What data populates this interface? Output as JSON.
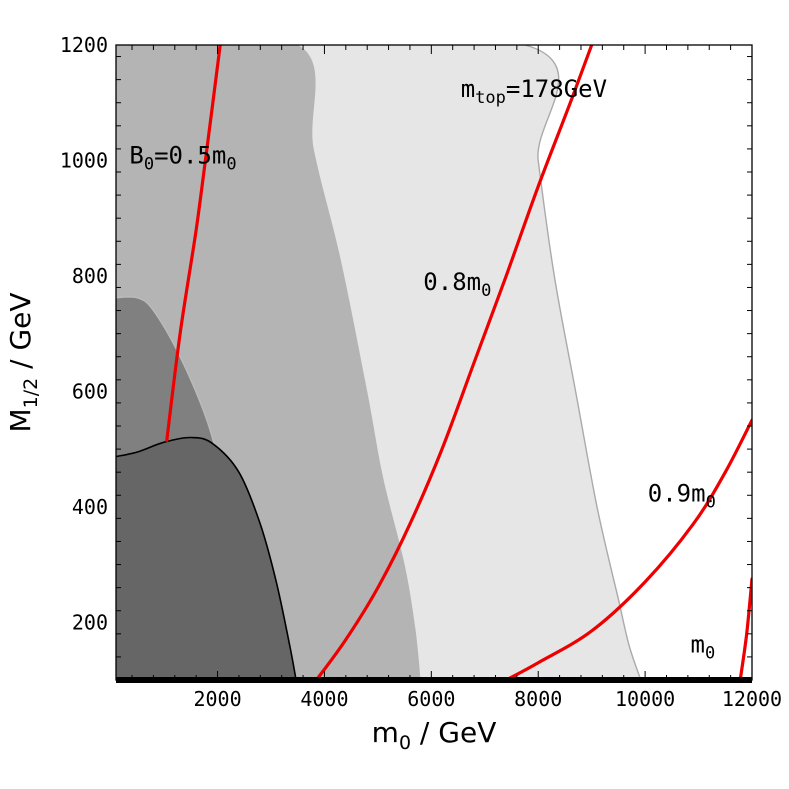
{
  "chart_data": {
    "type": "line",
    "xlabel": {
      "main": "m",
      "sub": "0",
      "unit": " / GeV"
    },
    "ylabel": {
      "main": "M",
      "sub": "1/2",
      "unit": " / GeV"
    },
    "xlim": [
      100,
      12000
    ],
    "ylim": [
      100,
      1200
    ],
    "xticks": [
      2000,
      4000,
      6000,
      8000,
      10000,
      12000
    ],
    "yticks": [
      200,
      400,
      600,
      800,
      1000,
      1200
    ],
    "grid": false,
    "regions": [
      {
        "id": "light",
        "color": "#e6e6e6",
        "edge": "#aaaaaa",
        "points": [
          [
            100,
            100
          ],
          [
            100,
            1200
          ],
          [
            7750,
            1200
          ],
          [
            8000,
            1000
          ],
          [
            8300,
            800
          ],
          [
            8700,
            600
          ],
          [
            9100,
            400
          ],
          [
            9500,
            240
          ],
          [
            9700,
            160
          ],
          [
            9920,
            100
          ]
        ]
      },
      {
        "id": "medium",
        "color": "#b4b4b4",
        "edge": null,
        "points": [
          [
            100,
            100
          ],
          [
            100,
            1200
          ],
          [
            3500,
            1200
          ],
          [
            3800,
            1020
          ],
          [
            4300,
            830
          ],
          [
            4800,
            600
          ],
          [
            5100,
            450
          ],
          [
            5500,
            300
          ],
          [
            5700,
            190
          ],
          [
            5800,
            100
          ]
        ]
      },
      {
        "id": "mid-dark",
        "color": "#808080",
        "edge": "#bbbbbb",
        "points": [
          [
            100,
            100
          ],
          [
            100,
            762
          ],
          [
            500,
            762
          ],
          [
            800,
            740
          ],
          [
            1300,
            660
          ],
          [
            1800,
            550
          ],
          [
            2200,
            420
          ],
          [
            2600,
            300
          ],
          [
            3000,
            180
          ],
          [
            3150,
            100
          ]
        ]
      },
      {
        "id": "dark",
        "color": "#666666",
        "edge": "#000000",
        "points": [
          [
            100,
            100
          ],
          [
            100,
            487
          ],
          [
            500,
            495
          ],
          [
            1000,
            512
          ],
          [
            1500,
            520
          ],
          [
            1900,
            510
          ],
          [
            2400,
            460
          ],
          [
            2800,
            370
          ],
          [
            3100,
            270
          ],
          [
            3350,
            160
          ],
          [
            3470,
            100
          ]
        ]
      }
    ],
    "series": [
      {
        "label": "B₀=0.5m₀",
        "color": "#ee0000",
        "points": [
          [
            1050,
            515
          ],
          [
            1300,
            700
          ],
          [
            1600,
            880
          ],
          [
            1800,
            1020
          ],
          [
            2050,
            1200
          ]
        ]
      },
      {
        "label": "0.8m₀",
        "color": "#ee0000",
        "points": [
          [
            3850,
            100
          ],
          [
            4400,
            170
          ],
          [
            5000,
            260
          ],
          [
            5600,
            370
          ],
          [
            6200,
            500
          ],
          [
            6800,
            650
          ],
          [
            7400,
            800
          ],
          [
            8000,
            955
          ],
          [
            8600,
            1100
          ],
          [
            9000,
            1200
          ]
        ]
      },
      {
        "label": "0.9m₀",
        "color": "#ee0000",
        "points": [
          [
            7400,
            100
          ],
          [
            8000,
            130
          ],
          [
            9000,
            185
          ],
          [
            10000,
            270
          ],
          [
            10900,
            370
          ],
          [
            11500,
            460
          ],
          [
            12000,
            550
          ]
        ]
      },
      {
        "label": "m₀",
        "color": "#ee0000",
        "points": [
          [
            11780,
            100
          ],
          [
            11900,
            180
          ],
          [
            12000,
            275
          ]
        ]
      }
    ],
    "annotations": [
      {
        "id": "mtop",
        "text": "m",
        "sub": "top",
        "suffix": "=178GeV",
        "x": 6550,
        "y": 1110
      },
      {
        "id": "b0",
        "text": "B",
        "sub": "0",
        "suffix": "=0.5m",
        "sub2": "0",
        "x": 350,
        "y": 995
      },
      {
        "id": "c08",
        "text": "0.8m",
        "sub": "0",
        "x": 5850,
        "y": 776
      },
      {
        "id": "c09",
        "text": "0.9m",
        "sub": "0",
        "x": 10050,
        "y": 409
      },
      {
        "id": "c1",
        "text": "m",
        "sub": "0",
        "x": 10850,
        "y": 148
      }
    ],
    "baseline": {
      "y": 100,
      "color": "#000000"
    }
  }
}
